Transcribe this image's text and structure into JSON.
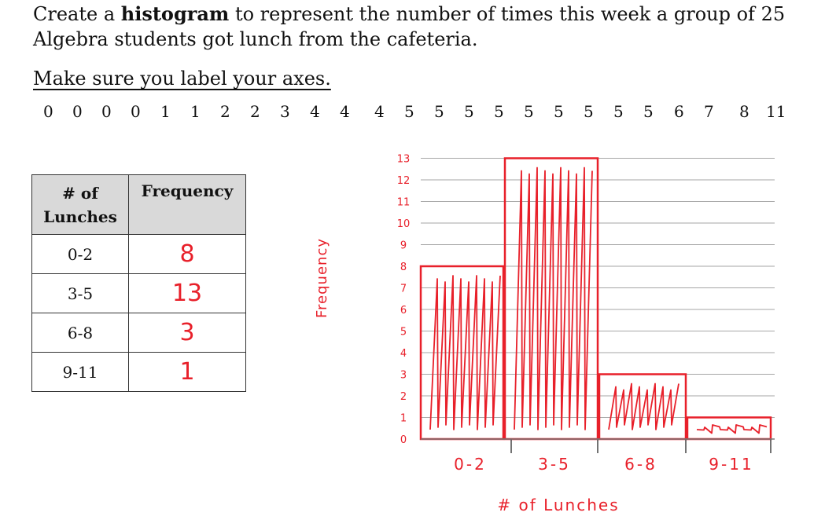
{
  "prompt": {
    "part1": "Create a ",
    "bold": "histogram",
    "part2": " to represent the number of times this week a group of 25 Algebra students got lunch from the cafeteria."
  },
  "instruction": "Make sure you label your axes.",
  "dataset": [
    "0",
    "0",
    "0",
    "0",
    "1",
    "1",
    "2",
    "2",
    "3",
    "4",
    "4",
    "4",
    "5",
    "5",
    "5",
    "5",
    "5",
    "5",
    "5",
    "5",
    "5",
    "6",
    "7",
    "8",
    "11"
  ],
  "table": {
    "headers": [
      "# of Lunches",
      "Frequency"
    ],
    "rows": [
      {
        "range": "0-2",
        "frequency": "8"
      },
      {
        "range": "3-5",
        "frequency": "13"
      },
      {
        "range": "6-8",
        "frequency": "3"
      },
      {
        "range": "9-11",
        "frequency": "1"
      }
    ]
  },
  "chart_data": {
    "type": "bar",
    "categories": [
      "0-2",
      "3-5",
      "6-8",
      "9-11"
    ],
    "values": [
      8,
      13,
      3,
      1
    ],
    "ylabel": "Frequency",
    "xlabel": "# of Lunches",
    "ylim": [
      0,
      13
    ],
    "yticks": [
      "0",
      "1",
      "2",
      "3",
      "4",
      "5",
      "6",
      "7",
      "8",
      "9",
      "10",
      "11",
      "12",
      "13"
    ],
    "grid": true,
    "bar_color": "#e8202a"
  }
}
